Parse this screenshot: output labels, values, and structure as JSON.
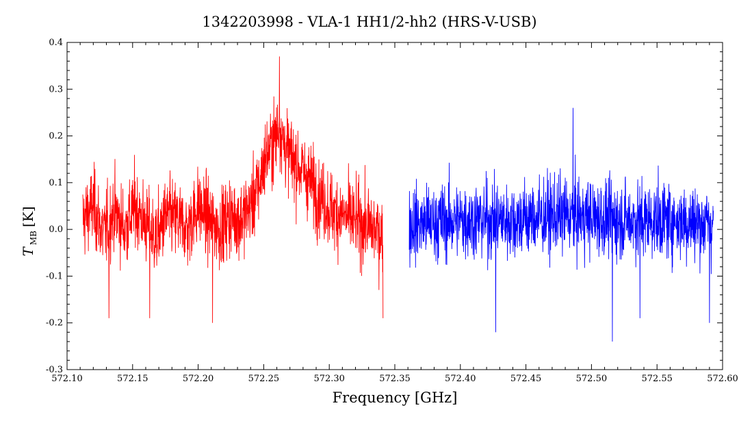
{
  "chart_data": {
    "type": "line",
    "title": "1342203998 - VLA-1 HH1/2-hh2 (HRS-V-USB)",
    "xlabel": "Frequency [GHz]",
    "ylabel": {
      "symbol": "T",
      "subscript": "MB",
      "unit": "[K]"
    },
    "xlim": [
      572.1,
      572.6
    ],
    "ylim": [
      -0.3,
      0.4
    ],
    "xticks": [
      "572.10",
      "572.15",
      "572.20",
      "572.25",
      "572.30",
      "572.35",
      "572.40",
      "572.45",
      "572.50",
      "572.55",
      "572.60"
    ],
    "yticks": [
      "-0.3",
      "-0.2",
      "-0.1",
      "0.0",
      "0.1",
      "0.2",
      "0.3",
      "0.4"
    ],
    "grid": false,
    "legend": "none",
    "series": [
      {
        "color": "#ff0000",
        "x_range": [
          572.112,
          572.341
        ],
        "samples": [
          [
            572.112,
            0.02
          ],
          [
            572.12,
            0.05
          ],
          [
            572.128,
            -0.01
          ],
          [
            572.136,
            0.04
          ],
          [
            572.144,
            0.0
          ],
          [
            572.152,
            0.05
          ],
          [
            572.16,
            0.01
          ],
          [
            572.168,
            -0.02
          ],
          [
            572.176,
            0.03
          ],
          [
            572.184,
            0.02
          ],
          [
            572.192,
            0.0
          ],
          [
            572.2,
            0.05
          ],
          [
            572.208,
            0.02
          ],
          [
            572.216,
            0.0
          ],
          [
            572.224,
            0.03
          ],
          [
            572.232,
            0.02
          ],
          [
            572.24,
            0.05
          ],
          [
            572.246,
            0.09
          ],
          [
            572.252,
            0.16
          ],
          [
            572.258,
            0.19
          ],
          [
            572.262,
            0.22
          ],
          [
            572.266,
            0.18
          ],
          [
            572.272,
            0.15
          ],
          [
            572.278,
            0.13
          ],
          [
            572.284,
            0.11
          ],
          [
            572.29,
            0.08
          ],
          [
            572.296,
            0.06
          ],
          [
            572.302,
            0.04
          ],
          [
            572.31,
            0.03
          ],
          [
            572.318,
            0.02
          ],
          [
            572.326,
            0.01
          ],
          [
            572.334,
            0.0
          ],
          [
            572.341,
            -0.01
          ]
        ],
        "extrema": [
          [
            572.132,
            -0.19
          ],
          [
            572.163,
            -0.19
          ],
          [
            572.211,
            -0.2
          ],
          [
            572.262,
            0.37
          ],
          [
            572.341,
            -0.19
          ]
        ]
      },
      {
        "color": "#0000ff",
        "x_range": [
          572.361,
          572.593
        ],
        "samples": [
          [
            572.361,
            0.01
          ],
          [
            572.4,
            0.02
          ],
          [
            572.44,
            0.02
          ],
          [
            572.48,
            0.03
          ],
          [
            572.52,
            0.02
          ],
          [
            572.56,
            0.02
          ],
          [
            572.593,
            0.01
          ]
        ],
        "extrema": [
          [
            572.427,
            -0.22
          ],
          [
            572.486,
            0.26
          ],
          [
            572.516,
            -0.24
          ],
          [
            572.537,
            -0.19
          ],
          [
            572.59,
            -0.2
          ]
        ]
      }
    ]
  }
}
